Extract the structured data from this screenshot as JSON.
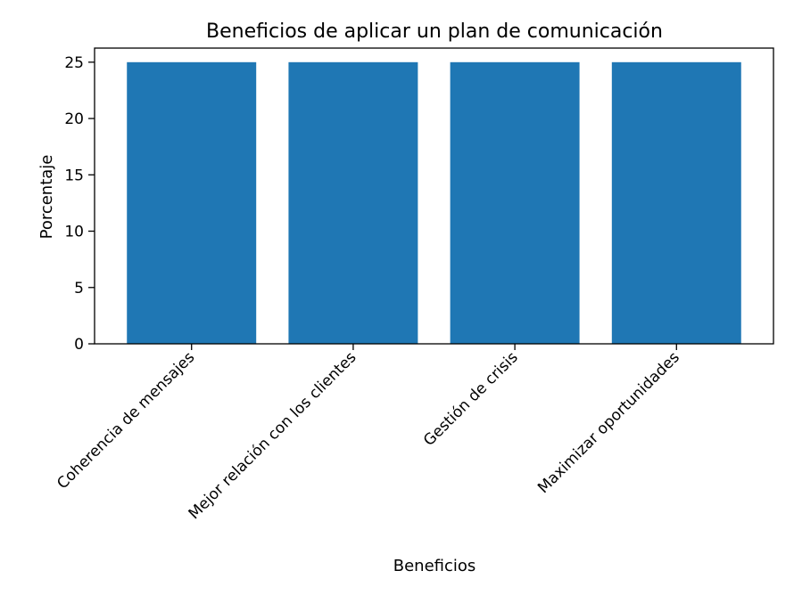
{
  "chart_data": {
    "type": "bar",
    "title": "Beneficios de aplicar un plan de comunicación",
    "xlabel": "Beneficios",
    "ylabel": "Porcentaje",
    "categories": [
      "Coherencia de mensajes",
      "Mejor relación con los clientes",
      "Gestión de crisis",
      "Maximizar oportunidades"
    ],
    "values": [
      25,
      25,
      25,
      25
    ],
    "ylim": [
      0,
      26.25
    ],
    "yticks": [
      0,
      5,
      10,
      15,
      20,
      25
    ],
    "grid": false,
    "bar_color": "#1f77b4"
  }
}
